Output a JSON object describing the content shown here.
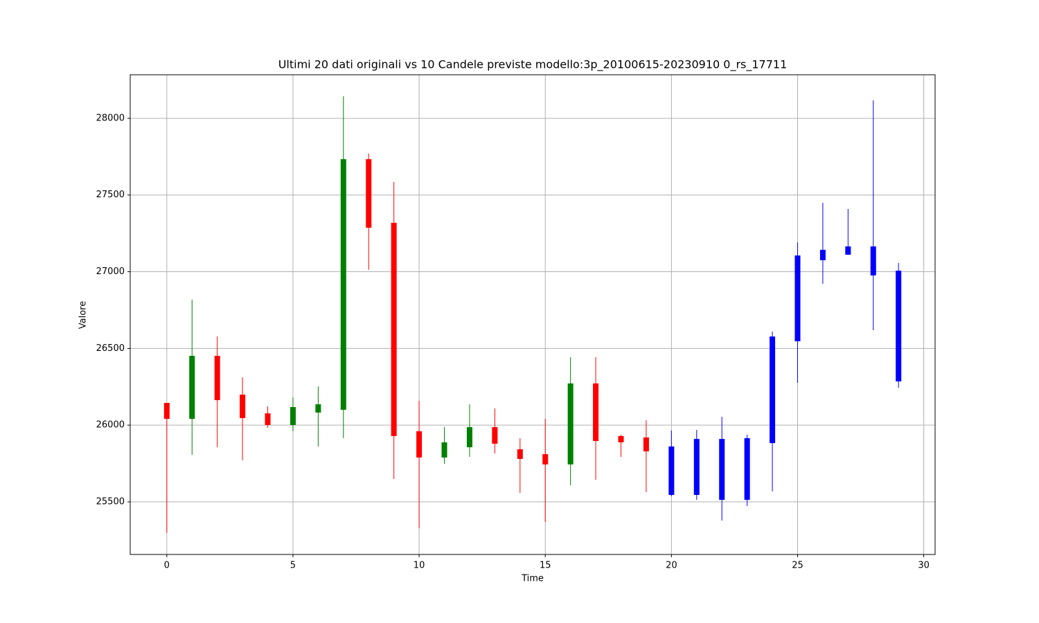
{
  "chart_data": {
    "type": "candlestick",
    "title": "Ultimi 20 dati originali vs 10 Candele previste modello:3p_20100615-20230910 0_rs_17711",
    "x_label": "Time",
    "y_label": "Valore",
    "xlim": [
      -1.45,
      30.45
    ],
    "xticks": [
      0,
      5,
      10,
      15,
      20,
      25,
      30
    ],
    "ylim": [
      25157,
      28284
    ],
    "yticks": [
      25500,
      26000,
      26500,
      27000,
      27500,
      28000
    ],
    "grid": true,
    "series": [
      {
        "up_color": "green",
        "down_color": "red",
        "x": [
          0,
          1,
          2,
          3,
          4,
          5,
          6,
          7,
          8,
          9,
          10,
          11,
          12,
          13,
          14,
          15,
          16,
          17,
          18,
          19
        ],
        "open": [
          26145,
          26041,
          26452,
          26199,
          26077,
          26001,
          26082,
          26100,
          27734,
          27319,
          25960,
          25789,
          25856,
          25987,
          25843,
          25811,
          25744,
          26272,
          25929,
          25920
        ],
        "high": [
          26145,
          26818,
          26578,
          26312,
          26123,
          26181,
          26253,
          28144,
          27770,
          27585,
          26159,
          25987,
          26136,
          26109,
          25915,
          26041,
          26443,
          26443,
          25938,
          26032
        ],
        "low": [
          25297,
          25807,
          25856,
          25771,
          25983,
          25960,
          25861,
          25915,
          27012,
          25649,
          25328,
          25748,
          25793,
          25816,
          25558,
          25369,
          25608,
          25644,
          25793,
          25563
        ],
        "close": [
          26041,
          26452,
          26163,
          26046,
          26001,
          26118,
          26136,
          27734,
          27287,
          25929,
          25789,
          25888,
          25987,
          25879,
          25780,
          25744,
          26272,
          25897,
          25888,
          25829
        ]
      },
      {
        "color": "blue",
        "x": [
          20,
          21,
          22,
          23,
          24,
          25,
          26,
          27,
          28,
          29
        ],
        "open": [
          25861,
          25910,
          25910,
          25915,
          26578,
          27106,
          27143,
          27165,
          27165,
          27007
        ],
        "high": [
          25965,
          25969,
          26055,
          25938,
          26610,
          27192,
          27449,
          27409,
          28117,
          27057
        ],
        "low": [
          25536,
          25513,
          25378,
          25473,
          25568,
          26276,
          26921,
          27111,
          26619,
          26244
        ],
        "close": [
          25545,
          25545,
          25513,
          25513,
          25883,
          26547,
          27075,
          27111,
          26976,
          26285
        ]
      }
    ]
  }
}
